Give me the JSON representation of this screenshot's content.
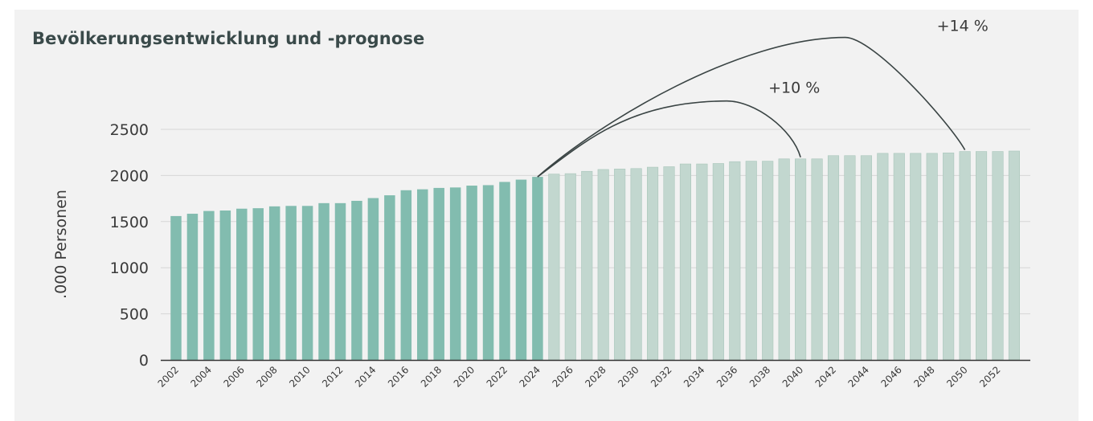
{
  "chart_data": {
    "type": "bar",
    "title": "Bevölkerungsentwicklung und -prognose",
    "xlabel": "",
    "ylabel": ".000 Personen",
    "ylim": [
      0,
      2500
    ],
    "yticks": [
      0,
      500,
      1000,
      1500,
      2000,
      2500
    ],
    "grid": true,
    "colors": {
      "historical": "#82bcaf",
      "forecast": "#c2d7cf",
      "forecast_edge": "#a9c6bb",
      "grid": "#d6d6d6",
      "axis": "#333333",
      "annotation": "#3a4444"
    },
    "series": [
      {
        "kind": "historical",
        "x": [
          2002,
          2003,
          2004,
          2005,
          2006,
          2007,
          2008,
          2009,
          2010,
          2011,
          2012,
          2013,
          2014,
          2015,
          2016,
          2017,
          2018,
          2019,
          2020,
          2021,
          2022,
          2023,
          2024
        ],
        "values": [
          1560,
          1585,
          1615,
          1620,
          1640,
          1645,
          1665,
          1670,
          1670,
          1700,
          1700,
          1725,
          1755,
          1785,
          1840,
          1850,
          1865,
          1870,
          1890,
          1895,
          1930,
          1955,
          1985
        ]
      },
      {
        "kind": "forecast",
        "x": [
          2025,
          2026,
          2027,
          2028,
          2029,
          2030,
          2031,
          2032,
          2033,
          2034,
          2035,
          2036,
          2037,
          2038,
          2039,
          2040,
          2041,
          2042,
          2043,
          2044,
          2045,
          2046,
          2047,
          2048,
          2049,
          2050,
          2051,
          2052,
          2053
        ],
        "values": [
          2015,
          2020,
          2045,
          2065,
          2070,
          2075,
          2090,
          2095,
          2125,
          2125,
          2130,
          2150,
          2155,
          2155,
          2180,
          2180,
          2180,
          2215,
          2215,
          2215,
          2240,
          2240,
          2240,
          2240,
          2245,
          2260,
          2260,
          2260,
          2265
        ]
      }
    ],
    "x_tick_labels": [
      "2002",
      "2004",
      "2006",
      "2008",
      "2010",
      "2012",
      "2014",
      "2016",
      "2018",
      "2020",
      "2022",
      "2024",
      "2026",
      "2028",
      "2030",
      "2032",
      "2034",
      "2036",
      "2038",
      "2040",
      "2042",
      "2044",
      "2046",
      "2048",
      "2050",
      "2052"
    ],
    "annotations": [
      {
        "label": "+10 %",
        "from_year": 2024,
        "to_year": 2040
      },
      {
        "label": "+14 %",
        "from_year": 2024,
        "to_year": 2050
      }
    ]
  }
}
